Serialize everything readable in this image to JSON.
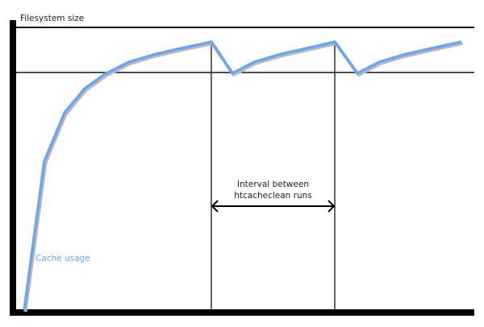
{
  "diagram": {
    "y_axis_label": "Filesystem size",
    "interval_label_line1": "Interval between",
    "interval_label_line2": "htcacheclean runs",
    "series_label": "Cache usage",
    "colors": {
      "curve": "#6aa6f0",
      "lines": "#111111"
    }
  }
}
